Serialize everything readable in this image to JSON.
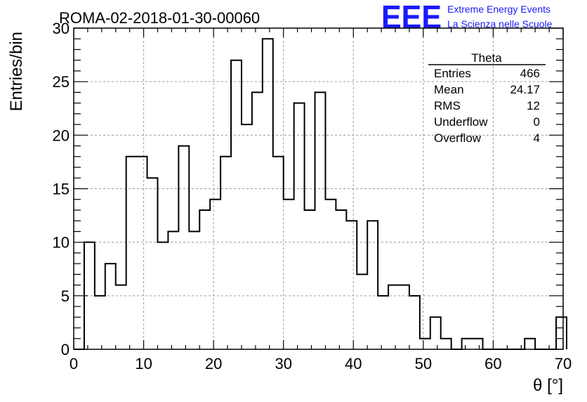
{
  "header": {
    "run_title": "ROMA-02-2018-01-30-00060",
    "logo_text": "EEE",
    "org_line1": "Extreme Energy Events",
    "org_line2": "La Scienza nelle Scuole",
    "logo_color": "#1a1aff"
  },
  "stats_box": {
    "title": "Theta",
    "rows": [
      {
        "label": "Entries",
        "value": "466"
      },
      {
        "label": "Mean",
        "value": "24.17"
      },
      {
        "label": "RMS",
        "value": "12"
      },
      {
        "label": "Underflow",
        "value": "0"
      },
      {
        "label": "Overflow",
        "value": "4"
      }
    ]
  },
  "chart_data": {
    "type": "bar",
    "histogram": true,
    "title": "ROMA-02-2018-01-30-00060",
    "xlabel": "θ [°]",
    "ylabel": "Entries/bin",
    "xlim": [
      0,
      70
    ],
    "ylim": [
      0,
      30
    ],
    "x_ticks": [
      0,
      10,
      20,
      30,
      40,
      50,
      60,
      70
    ],
    "y_ticks": [
      0,
      5,
      10,
      15,
      20,
      25,
      30
    ],
    "grid": true,
    "bin_width": 1.5,
    "bin_start": 0,
    "values": [
      0,
      10,
      5,
      8,
      6,
      18,
      18,
      16,
      10,
      11,
      19,
      11,
      13,
      14,
      18,
      27,
      21,
      24,
      29,
      18,
      14,
      23,
      13,
      24,
      14,
      13,
      12,
      7,
      12,
      5,
      6,
      6,
      5,
      1,
      3,
      1,
      0,
      1,
      1,
      0,
      0,
      0,
      0,
      1,
      0,
      0,
      3
    ]
  }
}
